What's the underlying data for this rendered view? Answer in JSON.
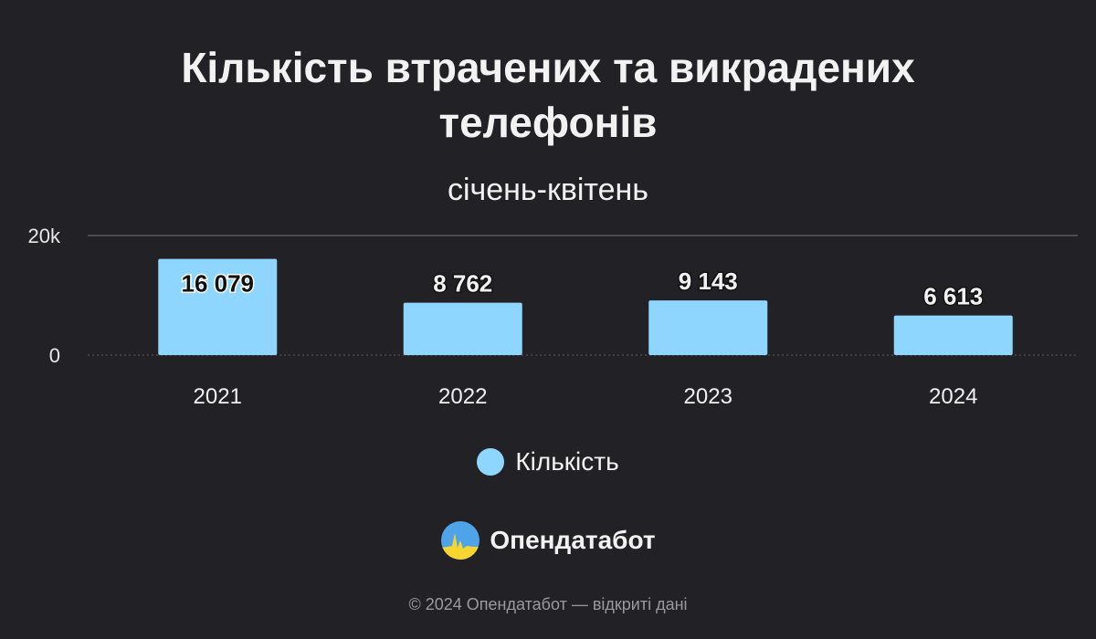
{
  "header": {
    "title_line1": "Кількість втрачених та викрадених",
    "title_line2": "телефонів",
    "subtitle": "січень-квітень"
  },
  "legend": {
    "label": "Кількість"
  },
  "brand": {
    "name": "Опендатабот",
    "logo_icon": "opendatabot-logo-icon"
  },
  "footer": {
    "text": "© 2024 Опендатабот — відкриті дані"
  },
  "colors": {
    "bar": "#8fd6ff",
    "background": "#222226",
    "grid": "#5a5a5e",
    "text": "#f2f2f2"
  },
  "chart_data": {
    "type": "bar",
    "categories": [
      "2021",
      "2022",
      "2023",
      "2024"
    ],
    "values": [
      16079,
      8762,
      9143,
      6613
    ],
    "value_labels": [
      "16 079",
      "8 762",
      "9 143",
      "6 613"
    ],
    "y_ticks": [
      {
        "value": 0,
        "label": "0"
      },
      {
        "value": 20000,
        "label": "20k"
      }
    ],
    "ylim": [
      0,
      20000
    ],
    "legend": "bottom-center"
  }
}
